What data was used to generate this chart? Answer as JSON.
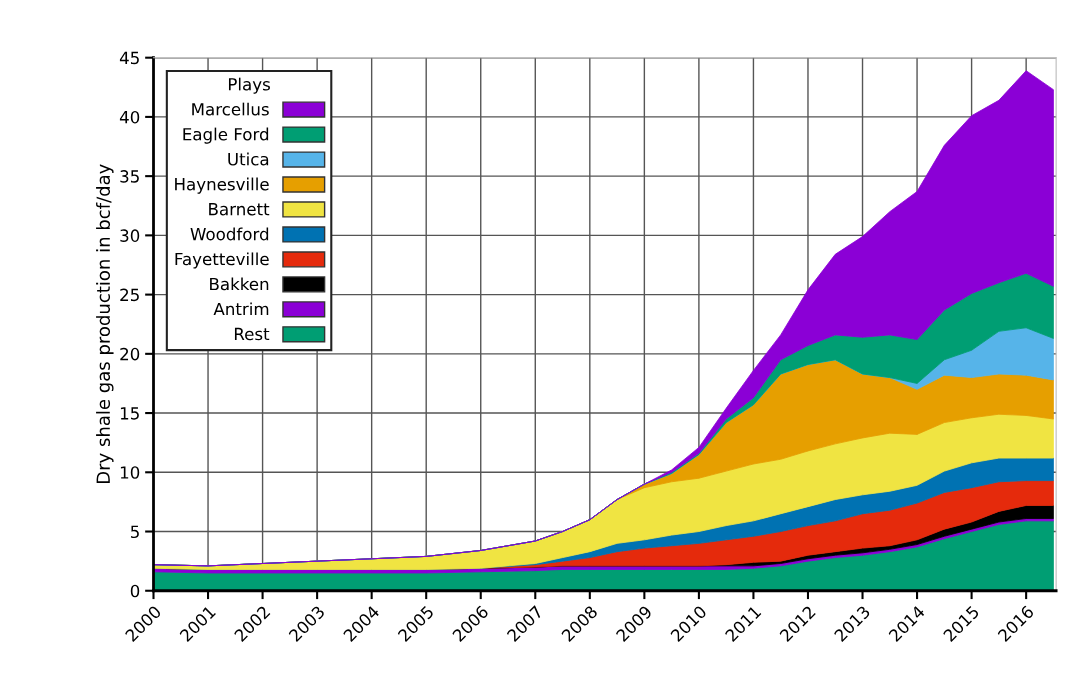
{
  "chart_data": {
    "type": "area",
    "stacked": true,
    "ylabel": "Dry shale gas production in bcf/day",
    "legend_title": "Plays",
    "legend": "top left",
    "grid": true,
    "x": [
      2000,
      2001,
      2002,
      2003,
      2004,
      2005,
      2006,
      2007,
      2007.5,
      2008,
      2008.5,
      2009,
      2009.5,
      2010,
      2010.5,
      2011,
      2011.5,
      2012,
      2012.5,
      2013,
      2013.5,
      2014,
      2014.5,
      2015,
      2015.5,
      2016,
      2016.5
    ],
    "xlim": [
      2000,
      2016.55
    ],
    "xticks": [
      2000,
      2001,
      2002,
      2003,
      2004,
      2005,
      2006,
      2007,
      2008,
      2009,
      2010,
      2011,
      2012,
      2013,
      2014,
      2015,
      2016
    ],
    "ylim": [
      0,
      45
    ],
    "yticks": [
      0,
      5,
      10,
      15,
      20,
      25,
      30,
      35,
      40,
      45
    ],
    "series": [
      {
        "name": "Rest",
        "color": "#009e73",
        "values": [
          1.6,
          1.5,
          1.5,
          1.5,
          1.5,
          1.5,
          1.6,
          1.7,
          1.8,
          1.8,
          1.8,
          1.8,
          1.8,
          1.8,
          1.8,
          1.9,
          2.1,
          2.5,
          2.8,
          3.0,
          3.3,
          3.7,
          4.4,
          5.0,
          5.6,
          5.9,
          5.9
        ]
      },
      {
        "name": "Antrim",
        "color": "#8b00d6",
        "values": [
          0.3,
          0.3,
          0.3,
          0.3,
          0.3,
          0.3,
          0.3,
          0.3,
          0.3,
          0.3,
          0.3,
          0.3,
          0.3,
          0.3,
          0.3,
          0.2,
          0.2,
          0.2,
          0.2,
          0.2,
          0.2,
          0.2,
          0.2,
          0.2,
          0.2,
          0.2,
          0.2
        ]
      },
      {
        "name": "Bakken",
        "color": "#000000",
        "values": [
          0,
          0,
          0,
          0,
          0,
          0,
          0,
          0,
          0,
          0,
          0,
          0,
          0,
          0,
          0.1,
          0.3,
          0.2,
          0.3,
          0.3,
          0.4,
          0.3,
          0.4,
          0.6,
          0.6,
          0.9,
          1.1,
          1.1
        ]
      },
      {
        "name": "Fayetteville",
        "color": "#e52a0c",
        "values": [
          0,
          0,
          0,
          0,
          0,
          0,
          0,
          0.2,
          0.4,
          0.7,
          1.2,
          1.5,
          1.7,
          1.9,
          2.1,
          2.2,
          2.5,
          2.5,
          2.6,
          2.9,
          3.0,
          3.1,
          3.1,
          2.9,
          2.5,
          2.1,
          2.1
        ]
      },
      {
        "name": "Woodford",
        "color": "#0072b2",
        "values": [
          0,
          0,
          0,
          0,
          0,
          0,
          0,
          0.1,
          0.3,
          0.5,
          0.7,
          0.7,
          0.9,
          1.0,
          1.2,
          1.3,
          1.5,
          1.6,
          1.8,
          1.6,
          1.6,
          1.5,
          1.8,
          2.1,
          2.0,
          1.9,
          1.9
        ]
      },
      {
        "name": "Barnett",
        "color": "#f0e442",
        "values": [
          0.3,
          0.3,
          0.5,
          0.7,
          0.9,
          1.1,
          1.5,
          1.9,
          2.2,
          2.7,
          3.7,
          4.4,
          4.5,
          4.5,
          4.6,
          4.8,
          4.6,
          4.7,
          4.7,
          4.8,
          4.9,
          4.3,
          4.1,
          3.8,
          3.7,
          3.6,
          3.3
        ]
      },
      {
        "name": "Haynesville",
        "color": "#e69f00",
        "values": [
          0,
          0,
          0,
          0,
          0,
          0,
          0,
          0,
          0,
          0,
          0,
          0.3,
          0.7,
          2.0,
          4.1,
          5.0,
          7.2,
          7.3,
          7.1,
          5.4,
          4.7,
          3.8,
          4.0,
          3.4,
          3.4,
          3.4,
          3.3
        ]
      },
      {
        "name": "Utica",
        "color": "#56b4e9",
        "values": [
          0,
          0,
          0,
          0,
          0,
          0,
          0,
          0,
          0,
          0,
          0,
          0,
          0,
          0,
          0,
          0,
          0,
          0,
          0,
          0,
          0,
          0.5,
          1.3,
          2.3,
          3.6,
          4.0,
          3.5
        ]
      },
      {
        "name": "Eagle Ford",
        "color": "#009e73",
        "values": [
          0,
          0,
          0,
          0,
          0,
          0,
          0,
          0,
          0,
          0,
          0,
          0,
          0.1,
          0.1,
          0.3,
          0.6,
          1.2,
          1.6,
          2.1,
          3.1,
          3.6,
          3.7,
          4.2,
          4.8,
          4.1,
          4.6,
          4.4
        ]
      },
      {
        "name": "Marcellus",
        "color": "#8b00d6",
        "values": [
          0,
          0,
          0,
          0,
          0,
          0,
          0,
          0,
          0,
          0,
          0,
          0,
          0.2,
          0.5,
          0.9,
          2.3,
          2.1,
          4.7,
          6.8,
          8.5,
          10.4,
          12.5,
          13.9,
          15.0,
          15.4,
          17.1,
          16.6
        ]
      }
    ]
  }
}
